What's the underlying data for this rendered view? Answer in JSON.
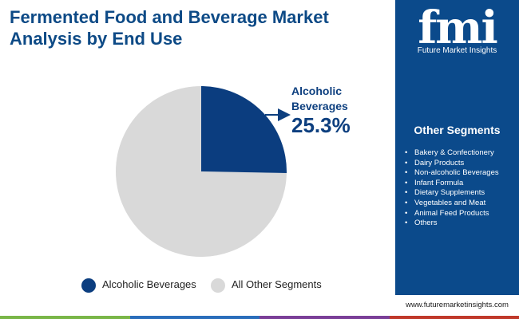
{
  "chart_data": {
    "type": "pie",
    "title": "Fermented Food and Beverage Market Analysis by End Use",
    "categories": [
      "Alcoholic Beverages",
      "All Other Segments"
    ],
    "values": [
      25.3,
      74.7
    ],
    "value_labels": [
      "25.3%",
      null
    ],
    "colors": [
      "#0b3d7f",
      "#d9d9d9"
    ]
  },
  "other_segments": {
    "title": "Other Segments",
    "items": [
      "Bakery & Confectionery",
      "Dairy Products",
      "Non-alcoholic Beverages",
      "Infant Formula",
      "Dietary Supplements",
      "Vegetables and Meat",
      "Animal Feed Products",
      "Others"
    ]
  },
  "brand": {
    "logo": "fmi",
    "name": "Future Market Insights",
    "url": "www.futuremarketinsights.com"
  }
}
